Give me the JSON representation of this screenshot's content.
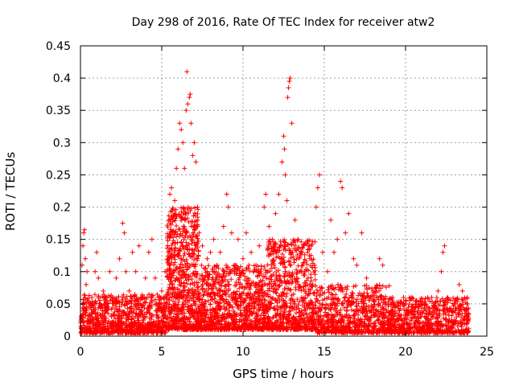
{
  "chart_data": {
    "type": "scatter",
    "title": "Day 298 of 2016, Rate Of TEC Index for receiver atw2",
    "xlabel": "GPS time / hours",
    "ylabel": "ROTI / TECUs",
    "xlim": [
      0,
      25
    ],
    "ylim": [
      0,
      0.45
    ],
    "xticks": [
      0,
      5,
      10,
      15,
      20,
      25
    ],
    "yticks": [
      0,
      0.05,
      0.1,
      0.15,
      0.2,
      0.25,
      0.3,
      0.35,
      0.4,
      0.45
    ],
    "xtick_labels": [
      "0",
      "5",
      "10",
      "15",
      "20",
      "25"
    ],
    "ytick_labels": [
      "0",
      "0.05",
      "0.1",
      "0.15",
      "0.2",
      "0.25",
      "0.3",
      "0.35",
      "0.4",
      "0.45"
    ],
    "grid": true,
    "marker": "+",
    "color": "#ff0000",
    "series": [
      {
        "name": "ROTI",
        "points": [
          [
            0.05,
            0.03
          ],
          [
            0.1,
            0.11
          ],
          [
            0.15,
            0.14
          ],
          [
            0.2,
            0.16
          ],
          [
            0.25,
            0.165
          ],
          [
            0.3,
            0.12
          ],
          [
            0.35,
            0.08
          ],
          [
            0.4,
            0.1
          ],
          [
            0.5,
            0.05
          ],
          [
            0.6,
            0.03
          ],
          [
            0.7,
            0.06
          ],
          [
            0.8,
            0.04
          ],
          [
            0.9,
            0.1
          ],
          [
            1.0,
            0.13
          ],
          [
            1.1,
            0.09
          ],
          [
            1.2,
            0.05
          ],
          [
            1.4,
            0.07
          ],
          [
            1.6,
            0.04
          ],
          [
            1.8,
            0.1
          ],
          [
            2.0,
            0.06
          ],
          [
            2.2,
            0.09
          ],
          [
            2.4,
            0.12
          ],
          [
            2.6,
            0.175
          ],
          [
            2.7,
            0.16
          ],
          [
            2.8,
            0.1
          ],
          [
            3.0,
            0.07
          ],
          [
            3.2,
            0.13
          ],
          [
            3.4,
            0.1
          ],
          [
            3.6,
            0.14
          ],
          [
            3.8,
            0.06
          ],
          [
            4.0,
            0.09
          ],
          [
            4.2,
            0.13
          ],
          [
            4.4,
            0.15
          ],
          [
            4.6,
            0.09
          ],
          [
            4.8,
            0.06
          ],
          [
            5.0,
            0.07
          ],
          [
            5.2,
            0.1
          ],
          [
            5.4,
            0.12
          ],
          [
            5.5,
            0.22
          ],
          [
            5.6,
            0.23
          ],
          [
            5.7,
            0.18
          ],
          [
            5.8,
            0.21
          ],
          [
            5.9,
            0.26
          ],
          [
            6.0,
            0.29
          ],
          [
            6.1,
            0.33
          ],
          [
            6.2,
            0.32
          ],
          [
            6.3,
            0.3
          ],
          [
            6.4,
            0.26
          ],
          [
            6.5,
            0.35
          ],
          [
            6.55,
            0.41
          ],
          [
            6.6,
            0.36
          ],
          [
            6.7,
            0.37
          ],
          [
            6.75,
            0.375
          ],
          [
            6.8,
            0.33
          ],
          [
            6.9,
            0.28
          ],
          [
            7.0,
            0.3
          ],
          [
            7.1,
            0.27
          ],
          [
            7.2,
            0.2
          ],
          [
            7.3,
            0.16
          ],
          [
            7.5,
            0.14
          ],
          [
            7.8,
            0.12
          ],
          [
            8.0,
            0.13
          ],
          [
            8.2,
            0.15
          ],
          [
            8.4,
            0.11
          ],
          [
            8.6,
            0.13
          ],
          [
            8.8,
            0.17
          ],
          [
            9.0,
            0.22
          ],
          [
            9.1,
            0.2
          ],
          [
            9.3,
            0.16
          ],
          [
            9.5,
            0.11
          ],
          [
            9.7,
            0.15
          ],
          [
            10.0,
            0.12
          ],
          [
            10.2,
            0.16
          ],
          [
            10.5,
            0.13
          ],
          [
            10.8,
            0.11
          ],
          [
            11.0,
            0.14
          ],
          [
            11.3,
            0.2
          ],
          [
            11.4,
            0.22
          ],
          [
            11.6,
            0.17
          ],
          [
            11.8,
            0.15
          ],
          [
            12.0,
            0.19
          ],
          [
            12.2,
            0.22
          ],
          [
            12.4,
            0.27
          ],
          [
            12.5,
            0.31
          ],
          [
            12.55,
            0.29
          ],
          [
            12.6,
            0.25
          ],
          [
            12.7,
            0.21
          ],
          [
            12.75,
            0.37
          ],
          [
            12.8,
            0.385
          ],
          [
            12.85,
            0.395
          ],
          [
            12.9,
            0.4
          ],
          [
            13.0,
            0.33
          ],
          [
            13.2,
            0.18
          ],
          [
            13.4,
            0.15
          ],
          [
            13.6,
            0.13
          ],
          [
            13.8,
            0.1
          ],
          [
            14.0,
            0.09
          ],
          [
            14.2,
            0.14
          ],
          [
            14.5,
            0.2
          ],
          [
            14.6,
            0.23
          ],
          [
            14.7,
            0.25
          ],
          [
            14.9,
            0.13
          ],
          [
            15.2,
            0.1
          ],
          [
            15.4,
            0.18
          ],
          [
            15.6,
            0.13
          ],
          [
            15.8,
            0.15
          ],
          [
            16.0,
            0.24
          ],
          [
            16.1,
            0.23
          ],
          [
            16.3,
            0.16
          ],
          [
            16.5,
            0.19
          ],
          [
            16.8,
            0.12
          ],
          [
            17.0,
            0.11
          ],
          [
            17.3,
            0.16
          ],
          [
            17.6,
            0.09
          ],
          [
            18.0,
            0.07
          ],
          [
            18.4,
            0.12
          ],
          [
            18.6,
            0.11
          ],
          [
            18.8,
            0.05
          ],
          [
            19.2,
            0.06
          ],
          [
            19.6,
            0.04
          ],
          [
            20.0,
            0.05
          ],
          [
            20.4,
            0.06
          ],
          [
            20.8,
            0.04
          ],
          [
            21.2,
            0.05
          ],
          [
            21.6,
            0.06
          ],
          [
            22.0,
            0.07
          ],
          [
            22.2,
            0.1
          ],
          [
            22.3,
            0.13
          ],
          [
            22.4,
            0.14
          ],
          [
            22.6,
            0.06
          ],
          [
            22.8,
            0.04
          ],
          [
            23.0,
            0.05
          ],
          [
            23.3,
            0.08
          ],
          [
            23.5,
            0.07
          ],
          [
            23.7,
            0.04
          ],
          [
            23.8,
            0.03
          ]
        ]
      }
    ],
    "dense_band": [
      {
        "x_from": 0.0,
        "x_to": 5.3,
        "y_low": 0.005,
        "y_high": 0.065,
        "count": 900
      },
      {
        "x_from": 5.3,
        "x_to": 7.3,
        "y_low": 0.01,
        "y_high": 0.2,
        "count": 700
      },
      {
        "x_from": 7.3,
        "x_to": 11.5,
        "y_low": 0.01,
        "y_high": 0.11,
        "count": 900
      },
      {
        "x_from": 11.5,
        "x_to": 14.5,
        "y_low": 0.01,
        "y_high": 0.15,
        "count": 700
      },
      {
        "x_from": 14.5,
        "x_to": 19.0,
        "y_low": 0.005,
        "y_high": 0.08,
        "count": 700
      },
      {
        "x_from": 19.0,
        "x_to": 23.9,
        "y_low": 0.005,
        "y_high": 0.06,
        "count": 700
      }
    ]
  }
}
